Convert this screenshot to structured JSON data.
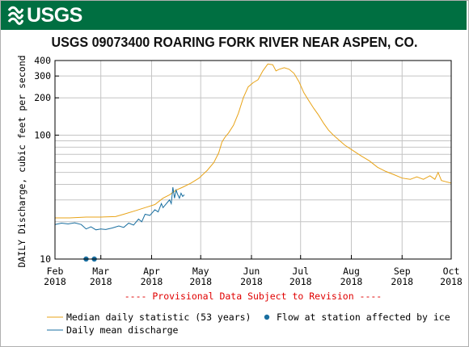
{
  "header": {
    "logo_text": "USGS"
  },
  "chart_data": {
    "type": "line",
    "title": "USGS 09073400 ROARING FORK RIVER NEAR ASPEN, CO.",
    "ylabel": "DAILY Discharge, cubic feet per second",
    "yscale": "log",
    "ylim": [
      10,
      400
    ],
    "xlim": [
      "2018-02-01",
      "2018-10-01"
    ],
    "y_ticks": [
      {
        "value": 10,
        "label": "10"
      },
      {
        "value": 100,
        "label": "100"
      },
      {
        "value": 200,
        "label": "200"
      },
      {
        "value": 300,
        "label": "300"
      },
      {
        "value": 400,
        "label": "400"
      }
    ],
    "x_ticks": [
      {
        "date": "2018-02-01",
        "month": "Feb",
        "year": "2018"
      },
      {
        "date": "2018-03-01",
        "month": "Mar",
        "year": "2018"
      },
      {
        "date": "2018-04-01",
        "month": "Apr",
        "year": "2018"
      },
      {
        "date": "2018-05-01",
        "month": "May",
        "year": "2018"
      },
      {
        "date": "2018-06-01",
        "month": "Jun",
        "year": "2018"
      },
      {
        "date": "2018-07-01",
        "month": "Jul",
        "year": "2018"
      },
      {
        "date": "2018-08-01",
        "month": "Aug",
        "year": "2018"
      },
      {
        "date": "2018-09-01",
        "month": "Sep",
        "year": "2018"
      },
      {
        "date": "2018-10-01",
        "month": "Oct",
        "year": "2018"
      }
    ],
    "provisional_note": "---- Provisional Data Subject to Revision ----",
    "grid": true,
    "series": [
      {
        "name": "Median daily statistic (53 years)",
        "color": "#e8a317",
        "points": [
          [
            "2018-02-01",
            21.5
          ],
          [
            "2018-02-10",
            21.5
          ],
          [
            "2018-02-20",
            21.8
          ],
          [
            "2018-03-01",
            21.8
          ],
          [
            "2018-03-10",
            22
          ],
          [
            "2018-03-15",
            23
          ],
          [
            "2018-03-22",
            24.5
          ],
          [
            "2018-03-28",
            26
          ],
          [
            "2018-04-03",
            27.5
          ],
          [
            "2018-04-08",
            31
          ],
          [
            "2018-04-12",
            33
          ],
          [
            "2018-04-16",
            36
          ],
          [
            "2018-04-20",
            38
          ],
          [
            "2018-04-25",
            41
          ],
          [
            "2018-04-30",
            45
          ],
          [
            "2018-05-05",
            52
          ],
          [
            "2018-05-09",
            60
          ],
          [
            "2018-05-12",
            72
          ],
          [
            "2018-05-14",
            88
          ],
          [
            "2018-05-16",
            97
          ],
          [
            "2018-05-18",
            104
          ],
          [
            "2018-05-21",
            120
          ],
          [
            "2018-05-24",
            150
          ],
          [
            "2018-05-27",
            200
          ],
          [
            "2018-05-30",
            245
          ],
          [
            "2018-06-02",
            265
          ],
          [
            "2018-06-05",
            280
          ],
          [
            "2018-06-08",
            330
          ],
          [
            "2018-06-11",
            375
          ],
          [
            "2018-06-14",
            370
          ],
          [
            "2018-06-16",
            330
          ],
          [
            "2018-06-18",
            340
          ],
          [
            "2018-06-21",
            350
          ],
          [
            "2018-06-24",
            340
          ],
          [
            "2018-06-27",
            315
          ],
          [
            "2018-06-30",
            270
          ],
          [
            "2018-07-03",
            220
          ],
          [
            "2018-07-06",
            190
          ],
          [
            "2018-07-09",
            165
          ],
          [
            "2018-07-12",
            145
          ],
          [
            "2018-07-15",
            125
          ],
          [
            "2018-07-18",
            110
          ],
          [
            "2018-07-21",
            100
          ],
          [
            "2018-07-25",
            90
          ],
          [
            "2018-07-28",
            83
          ],
          [
            "2018-08-02",
            75
          ],
          [
            "2018-08-07",
            68
          ],
          [
            "2018-08-12",
            62
          ],
          [
            "2018-08-17",
            55
          ],
          [
            "2018-08-22",
            51
          ],
          [
            "2018-08-27",
            48
          ],
          [
            "2018-09-01",
            45
          ],
          [
            "2018-09-06",
            44
          ],
          [
            "2018-09-10",
            46
          ],
          [
            "2018-09-14",
            44
          ],
          [
            "2018-09-18",
            47
          ],
          [
            "2018-09-21",
            44
          ],
          [
            "2018-09-23",
            50
          ],
          [
            "2018-09-25",
            43
          ],
          [
            "2018-09-28",
            42
          ],
          [
            "2018-10-01",
            41
          ]
        ]
      },
      {
        "name": "Daily mean discharge",
        "color": "#1a6fa0",
        "points": [
          [
            "2018-02-01",
            19
          ],
          [
            "2018-02-05",
            19.5
          ],
          [
            "2018-02-09",
            19.2
          ],
          [
            "2018-02-13",
            19.6
          ],
          [
            "2018-02-17",
            19
          ],
          [
            "2018-02-20",
            17.5
          ],
          [
            "2018-02-23",
            18.2
          ],
          [
            "2018-02-26",
            17.2
          ],
          [
            "2018-03-01",
            17.5
          ],
          [
            "2018-03-04",
            17.3
          ],
          [
            "2018-03-08",
            17.8
          ],
          [
            "2018-03-12",
            18.5
          ],
          [
            "2018-03-15",
            18
          ],
          [
            "2018-03-18",
            19.5
          ],
          [
            "2018-03-21",
            18.8
          ],
          [
            "2018-03-24",
            21
          ],
          [
            "2018-03-26",
            20
          ],
          [
            "2018-03-28",
            23
          ],
          [
            "2018-03-31",
            22.5
          ],
          [
            "2018-04-03",
            25
          ],
          [
            "2018-04-05",
            24
          ],
          [
            "2018-04-07",
            28
          ],
          [
            "2018-04-08",
            26
          ],
          [
            "2018-04-09",
            27
          ],
          [
            "2018-04-11",
            29
          ],
          [
            "2018-04-12",
            30
          ],
          [
            "2018-04-13",
            28
          ],
          [
            "2018-04-14",
            38
          ],
          [
            "2018-04-15",
            31
          ],
          [
            "2018-04-16",
            36
          ],
          [
            "2018-04-17",
            33
          ],
          [
            "2018-04-18",
            31
          ],
          [
            "2018-04-19",
            34
          ],
          [
            "2018-04-20",
            32
          ],
          [
            "2018-04-21",
            33
          ]
        ]
      }
    ],
    "ice_markers": {
      "name": "Flow at station affected by ice",
      "color": "#1a6fa0",
      "dates": [
        "2018-02-20",
        "2018-02-25"
      ],
      "value": 10
    }
  }
}
